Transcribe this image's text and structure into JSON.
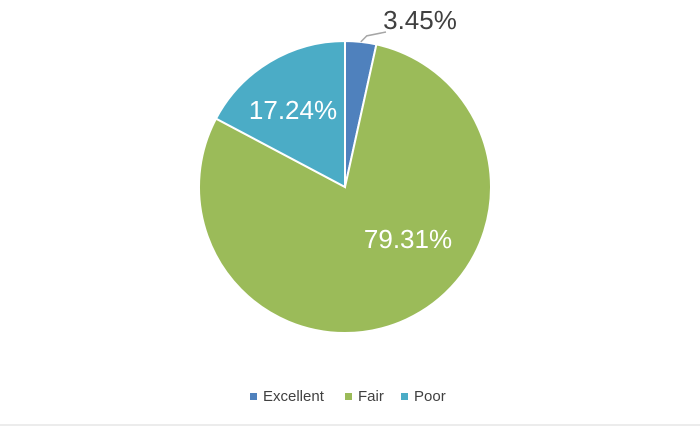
{
  "chart_data": {
    "type": "pie",
    "categories": [
      "Excellent",
      "Fair",
      "Poor"
    ],
    "values": [
      3.45,
      79.31,
      17.24
    ],
    "value_labels": [
      "3.45%",
      "79.31%",
      "17.24%"
    ],
    "colors": [
      "#4f81bd",
      "#9bbb59",
      "#4bacc6"
    ],
    "legend": "bottom"
  }
}
